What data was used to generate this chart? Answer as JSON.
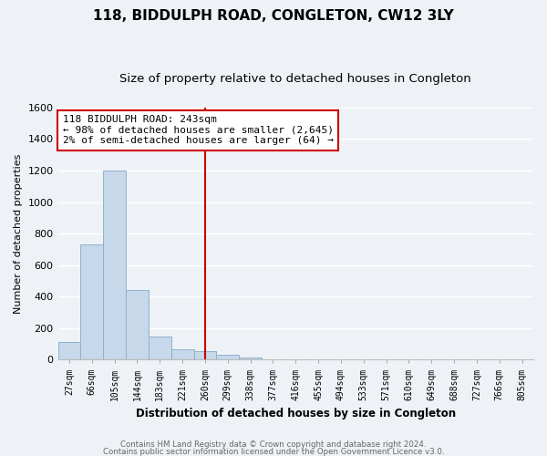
{
  "title": "118, BIDDULPH ROAD, CONGLETON, CW12 3LY",
  "subtitle": "Size of property relative to detached houses in Congleton",
  "xlabel": "Distribution of detached houses by size in Congleton",
  "ylabel": "Number of detached properties",
  "bar_labels": [
    "27sqm",
    "66sqm",
    "105sqm",
    "144sqm",
    "183sqm",
    "221sqm",
    "260sqm",
    "299sqm",
    "338sqm",
    "377sqm",
    "416sqm",
    "455sqm",
    "494sqm",
    "533sqm",
    "571sqm",
    "610sqm",
    "649sqm",
    "688sqm",
    "727sqm",
    "766sqm",
    "805sqm"
  ],
  "bar_values": [
    110,
    730,
    1200,
    440,
    145,
    65,
    55,
    30,
    15,
    0,
    0,
    0,
    0,
    0,
    0,
    0,
    0,
    0,
    0,
    0,
    0
  ],
  "bar_color": "#c6d8ea",
  "bar_edge_color": "#8fb0cc",
  "vline_x": 6,
  "vline_color": "#cc0000",
  "ylim": [
    0,
    1600
  ],
  "yticks": [
    0,
    200,
    400,
    600,
    800,
    1000,
    1200,
    1400,
    1600
  ],
  "annotation_title": "118 BIDDULPH ROAD: 243sqm",
  "annotation_line1": "← 98% of detached houses are smaller (2,645)",
  "annotation_line2": "2% of semi-detached houses are larger (64) →",
  "annotation_box_color": "#ffffff",
  "annotation_box_edge": "#cc0000",
  "footer_line1": "Contains HM Land Registry data © Crown copyright and database right 2024.",
  "footer_line2": "Contains public sector information licensed under the Open Government Licence v3.0.",
  "background_color": "#eef2f7",
  "plot_background": "#eef2f7",
  "grid_color": "#ffffff",
  "title_fontsize": 11,
  "subtitle_fontsize": 9.5
}
